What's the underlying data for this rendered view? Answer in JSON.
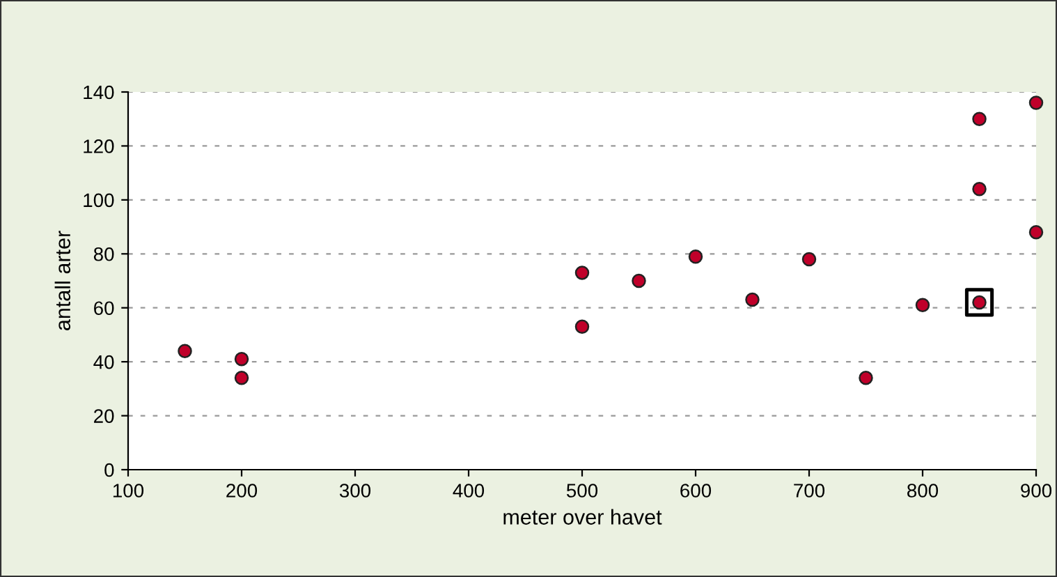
{
  "chart_data": {
    "type": "scatter",
    "xlabel": "meter over havet",
    "ylabel": "antall arter",
    "xlim": [
      100,
      900
    ],
    "xticks": [
      100,
      200,
      300,
      400,
      500,
      600,
      700,
      800,
      900
    ],
    "ylim": [
      0,
      140
    ],
    "yticks": [
      0,
      20,
      40,
      60,
      80,
      100,
      120,
      140
    ],
    "grid": "y",
    "marker": "circle",
    "series": [
      {
        "color": "#c0002a",
        "x": [
          150,
          200,
          200,
          500,
          500,
          550,
          600,
          650,
          700,
          750,
          800,
          850,
          850,
          850,
          900,
          900
        ],
        "values": [
          44,
          41,
          34,
          73,
          53,
          70,
          79,
          63,
          78,
          34,
          61,
          130,
          104,
          62,
          136,
          88
        ]
      },
      {
        "color": "#000000",
        "marker": "square",
        "x": [
          850
        ],
        "values": [
          62
        ]
      }
    ]
  }
}
